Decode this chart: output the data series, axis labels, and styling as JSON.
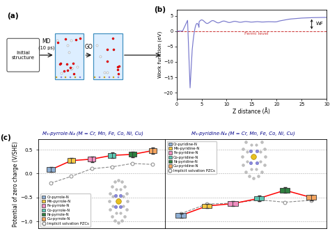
{
  "pyrrole_title": "M₁-pyrrole-N₄ (M = Cr, Mn, Fe, Co, Ni, Cu)",
  "pyridine_title": "M₁-pyridine-N₄ (M = Cr, Mn, Fe, Co, Ni, Cu)",
  "ylabel_c": "Potential of zero charge (V/SHE)",
  "xlabel_b": "Z distance (Å)",
  "ylabel_b": "Work function (eV)",
  "fermi_label": "Fermi level",
  "wf_label": "WF",
  "metals": [
    "Cr",
    "Mn",
    "Fe",
    "Co",
    "Ni",
    "Cu"
  ],
  "pyrrole_colors": [
    "#8eafd4",
    "#f5c842",
    "#f08ec0",
    "#5ec8b4",
    "#2e8040",
    "#f5a560"
  ],
  "pyridine_colors": [
    "#8eafd4",
    "#f5c842",
    "#f08ec0",
    "#5ec8b4",
    "#2e8040",
    "#f5a560"
  ],
  "pyrrole_pzc_vacuum": [
    0.08,
    0.27,
    0.3,
    0.38,
    0.4,
    0.48
  ],
  "pyrrole_pzc_implicit": [
    -0.2,
    -0.06,
    0.1,
    0.14,
    0.21,
    0.19
  ],
  "pyridine_pzc_vacuum": [
    -0.88,
    -0.68,
    -0.63,
    -0.52,
    -0.35,
    -0.5
  ],
  "pyridine_pzc_implicit": [
    -0.84,
    -0.64,
    -0.62,
    -0.55,
    -0.6,
    -0.56
  ],
  "pyrrole_err": [
    0.05,
    0.05,
    0.06,
    0.06,
    0.06,
    0.07
  ],
  "pyridine_err": [
    0.04,
    0.05,
    0.05,
    0.06,
    0.06,
    0.06
  ]
}
